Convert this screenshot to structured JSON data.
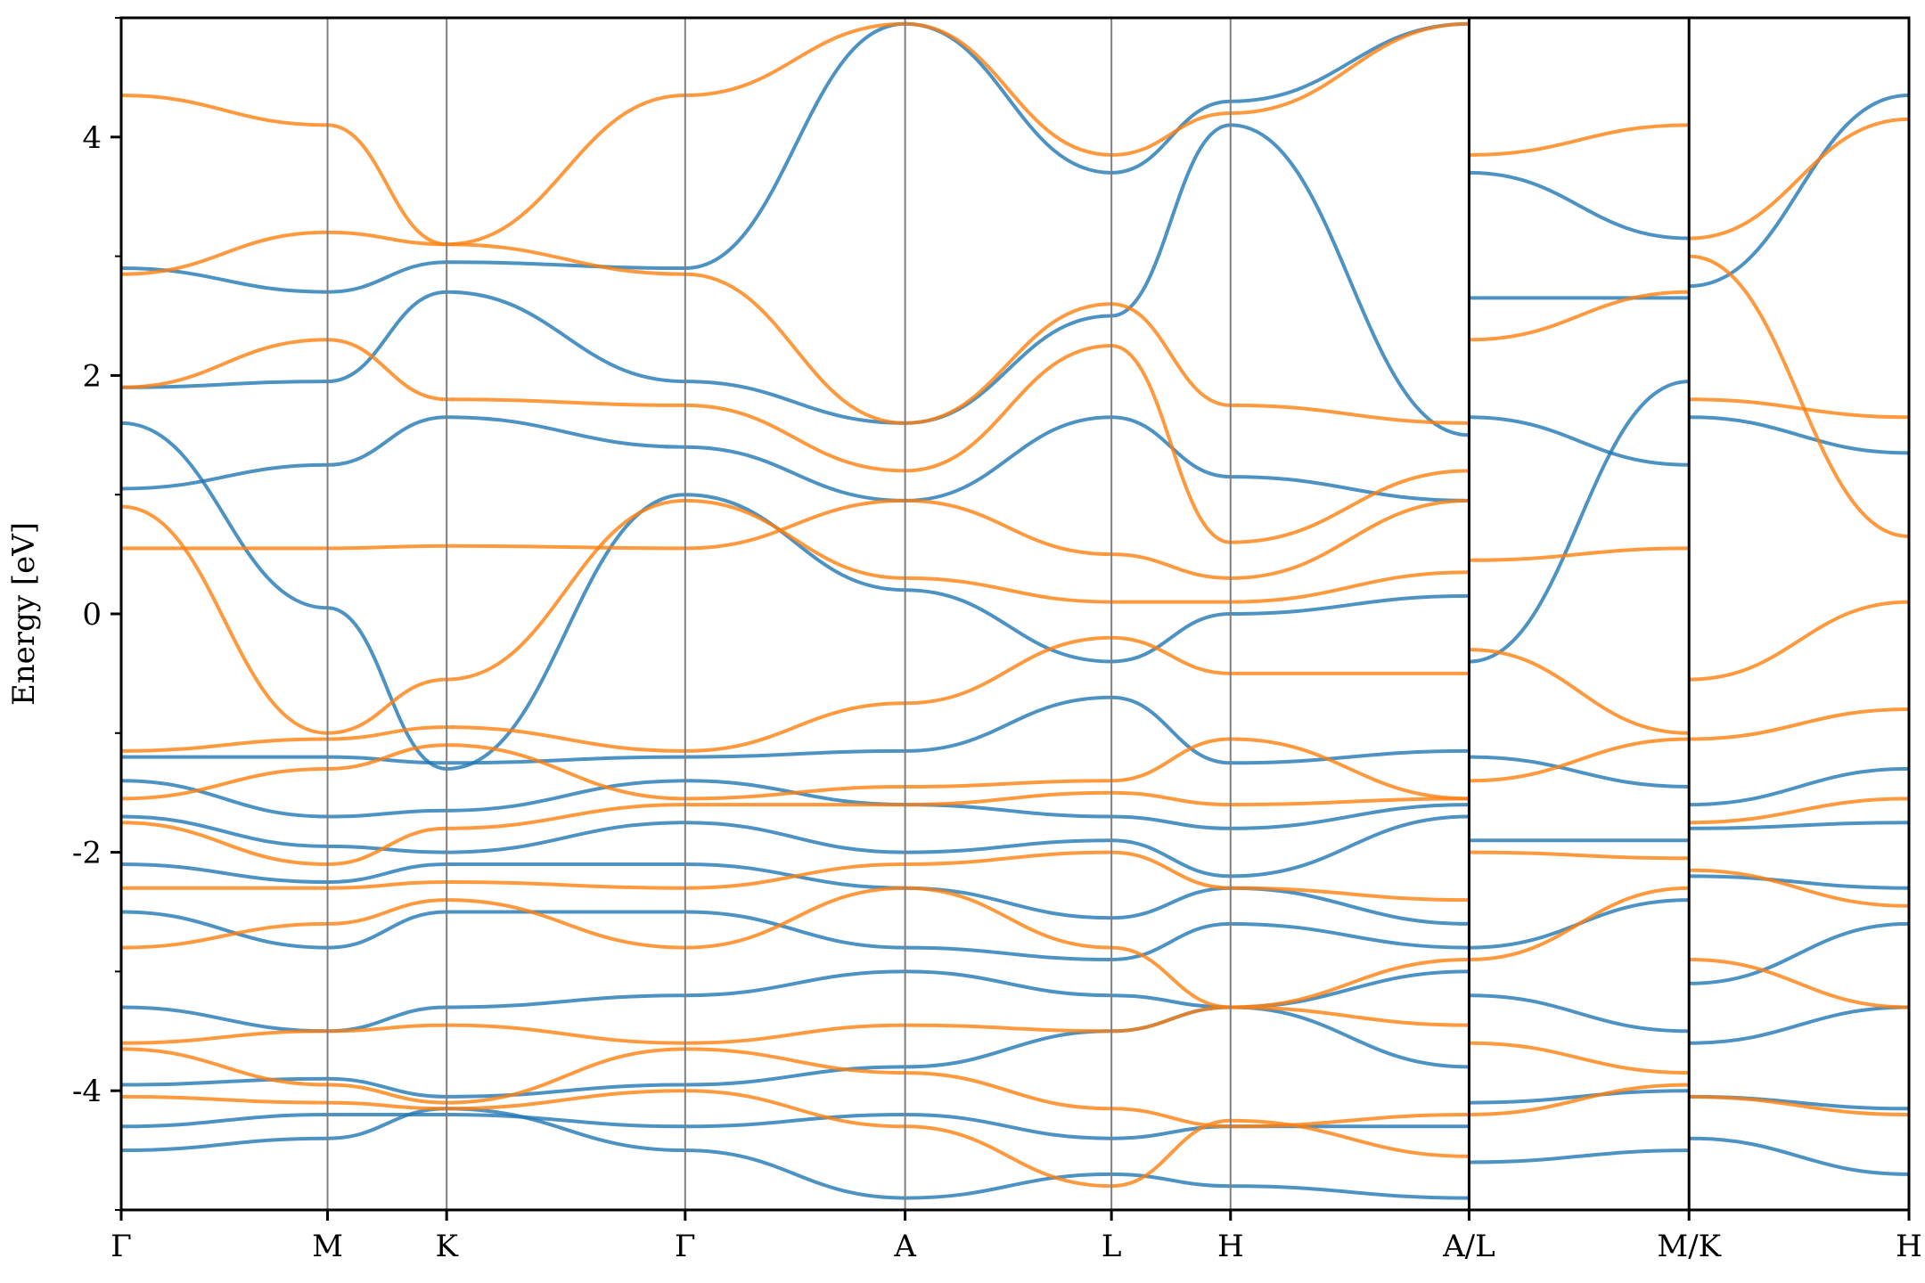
{
  "chart_data": {
    "type": "line",
    "title": "",
    "xlabel": "",
    "ylabel": "Energy [eV]",
    "ylim": [
      -5,
      5
    ],
    "grid": false,
    "legend": "none",
    "y_ticks": [
      -4,
      -2,
      0,
      2,
      4
    ],
    "y_minor_ticks": [
      -5,
      -3,
      -1,
      1,
      3,
      5
    ],
    "segments": [
      {
        "labels": [
          "Γ",
          "M",
          "K",
          "Γ",
          "A",
          "L",
          "H",
          "A"
        ],
        "k": [
          0,
          0.577,
          0.91,
          1.577,
          2.192,
          2.769,
          3.102,
          3.769
        ]
      },
      {
        "labels": [
          "L",
          "M"
        ],
        "k": [
          3.769,
          4.384
        ]
      },
      {
        "labels": [
          "K",
          "H"
        ],
        "k": [
          4.384,
          4.999
        ]
      }
    ],
    "k_tick_labels": [
      "Γ",
      "M",
      "K",
      "Γ",
      "A",
      "L",
      "H",
      "A/L",
      "M/K",
      "H"
    ],
    "k_tick_positions": [
      0,
      0.577,
      0.91,
      1.577,
      2.192,
      2.769,
      3.102,
      3.769,
      4.384,
      4.999
    ],
    "colors": {
      "series_a": "#1f77b4",
      "series_b": "#ff7f0e"
    },
    "series": [
      {
        "color": "#1f77b4",
        "bands": [
          {
            "k": [
              0,
              0.577,
              0.91,
              1.577,
              2.192,
              2.769,
              3.102,
              3.769
            ],
            "e": [
              2.9,
              2.7,
              2.95,
              2.9,
              4.95,
              3.7,
              4.3,
              4.95
            ]
          },
          {
            "k": [
              0,
              0.577,
              0.91,
              1.577,
              2.192,
              2.769,
              3.102,
              3.769
            ],
            "e": [
              1.9,
              1.95,
              2.7,
              1.95,
              1.6,
              2.5,
              4.1,
              1.5
            ]
          },
          {
            "k": [
              0,
              0.577,
              0.91,
              1.577,
              2.192,
              2.769,
              3.102,
              3.769
            ],
            "e": [
              1.05,
              1.25,
              1.65,
              1.4,
              0.95,
              1.65,
              1.15,
              0.95
            ]
          },
          {
            "k": [
              0,
              0.577,
              0.91,
              1.577,
              2.192,
              2.769,
              3.102,
              3.769
            ],
            "e": [
              1.6,
              0.05,
              -1.3,
              1.0,
              0.2,
              -0.4,
              0.0,
              0.15
            ]
          },
          {
            "k": [
              0,
              0.577,
              0.91,
              1.577,
              2.192,
              2.769,
              3.102,
              3.769
            ],
            "e": [
              -1.2,
              -1.2,
              -1.25,
              -1.2,
              -1.15,
              -0.7,
              -1.25,
              -1.15
            ]
          },
          {
            "k": [
              0,
              0.577,
              0.91,
              1.577,
              2.192,
              2.769,
              3.102,
              3.769
            ],
            "e": [
              -1.4,
              -1.7,
              -1.65,
              -1.4,
              -1.6,
              -1.7,
              -1.8,
              -1.6
            ]
          },
          {
            "k": [
              0,
              0.577,
              0.91,
              1.577,
              2.192,
              2.769,
              3.102,
              3.769
            ],
            "e": [
              -1.7,
              -1.95,
              -2.0,
              -1.75,
              -2.0,
              -1.9,
              -2.2,
              -1.7
            ]
          },
          {
            "k": [
              0,
              0.577,
              0.91,
              1.577,
              2.192,
              2.769,
              3.102,
              3.769
            ],
            "e": [
              -2.1,
              -2.25,
              -2.1,
              -2.1,
              -2.3,
              -2.55,
              -2.3,
              -2.6
            ]
          },
          {
            "k": [
              0,
              0.577,
              0.91,
              1.577,
              2.192,
              2.769,
              3.102,
              3.769
            ],
            "e": [
              -2.5,
              -2.8,
              -2.5,
              -2.5,
              -2.8,
              -2.9,
              -2.6,
              -2.8
            ]
          },
          {
            "k": [
              0,
              0.577,
              0.91,
              1.577,
              2.192,
              2.769,
              3.102,
              3.769
            ],
            "e": [
              -3.3,
              -3.5,
              -3.3,
              -3.2,
              -3.0,
              -3.2,
              -3.3,
              -3.0
            ]
          },
          {
            "k": [
              0,
              0.577,
              0.91,
              1.577,
              2.192,
              2.769,
              3.102,
              3.769
            ],
            "e": [
              -3.95,
              -3.9,
              -4.05,
              -3.95,
              -3.8,
              -3.5,
              -3.3,
              -3.8
            ]
          },
          {
            "k": [
              0,
              0.577,
              0.91,
              1.577,
              2.192,
              2.769,
              3.102,
              3.769
            ],
            "e": [
              -4.3,
              -4.2,
              -4.2,
              -4.3,
              -4.2,
              -4.4,
              -4.3,
              -4.3
            ]
          },
          {
            "k": [
              0,
              0.577,
              0.91,
              1.577,
              2.192,
              2.769,
              3.102,
              3.769
            ],
            "e": [
              -4.5,
              -4.4,
              -4.15,
              -4.5,
              -4.9,
              -4.7,
              -4.8,
              -4.9
            ]
          },
          {
            "k": [
              3.769,
              4.384
            ],
            "e": [
              3.7,
              3.15
            ]
          },
          {
            "k": [
              3.769,
              4.384
            ],
            "e": [
              2.65,
              2.65
            ]
          },
          {
            "k": [
              3.769,
              4.384
            ],
            "e": [
              1.65,
              1.25
            ]
          },
          {
            "k": [
              3.769,
              4.384
            ],
            "e": [
              -0.4,
              1.95
            ]
          },
          {
            "k": [
              3.769,
              4.384
            ],
            "e": [
              -1.2,
              -1.45
            ]
          },
          {
            "k": [
              3.769,
              4.384
            ],
            "e": [
              -1.9,
              -1.9
            ]
          },
          {
            "k": [
              3.769,
              4.384
            ],
            "e": [
              -2.8,
              -2.4
            ]
          },
          {
            "k": [
              3.769,
              4.384
            ],
            "e": [
              -3.2,
              -3.5
            ]
          },
          {
            "k": [
              3.769,
              4.384
            ],
            "e": [
              -4.1,
              -4.0
            ]
          },
          {
            "k": [
              3.769,
              4.384
            ],
            "e": [
              -4.6,
              -4.5
            ]
          },
          {
            "k": [
              4.384,
              4.999
            ],
            "e": [
              2.75,
              4.35
            ]
          },
          {
            "k": [
              4.384,
              4.999
            ],
            "e": [
              1.65,
              1.35
            ]
          },
          {
            "k": [
              4.384,
              4.999
            ],
            "e": [
              -1.6,
              -1.3
            ]
          },
          {
            "k": [
              4.384,
              4.999
            ],
            "e": [
              -1.8,
              -1.75
            ]
          },
          {
            "k": [
              4.384,
              4.999
            ],
            "e": [
              -2.2,
              -2.3
            ]
          },
          {
            "k": [
              4.384,
              4.999
            ],
            "e": [
              -3.1,
              -2.6
            ]
          },
          {
            "k": [
              4.384,
              4.999
            ],
            "e": [
              -3.6,
              -3.3
            ]
          },
          {
            "k": [
              4.384,
              4.999
            ],
            "e": [
              -4.05,
              -4.15
            ]
          },
          {
            "k": [
              4.384,
              4.999
            ],
            "e": [
              -4.4,
              -4.7
            ]
          }
        ]
      },
      {
        "color": "#ff7f0e",
        "bands": [
          {
            "k": [
              0,
              0.577,
              0.91,
              1.577,
              2.192,
              2.769,
              3.102,
              3.769
            ],
            "e": [
              4.35,
              4.1,
              3.1,
              4.35,
              4.95,
              3.85,
              4.2,
              4.95
            ]
          },
          {
            "k": [
              0,
              0.577,
              0.91,
              1.577,
              2.192,
              2.769,
              3.102,
              3.769
            ],
            "e": [
              2.85,
              3.2,
              3.1,
              2.85,
              1.6,
              2.6,
              1.75,
              1.6
            ]
          },
          {
            "k": [
              0,
              0.577,
              0.91,
              1.577,
              2.192,
              2.769,
              3.102,
              3.769
            ],
            "e": [
              1.9,
              2.3,
              1.8,
              1.75,
              1.2,
              2.25,
              0.6,
              1.2
            ]
          },
          {
            "k": [
              0,
              0.577,
              0.91,
              1.577,
              2.192,
              2.769,
              3.102,
              3.769
            ],
            "e": [
              0.55,
              0.55,
              0.57,
              0.55,
              0.95,
              0.5,
              0.3,
              0.95
            ]
          },
          {
            "k": [
              0,
              0.577,
              0.91,
              1.577,
              2.192,
              2.769,
              3.102,
              3.769
            ],
            "e": [
              0.9,
              -1.0,
              -0.55,
              0.95,
              0.3,
              0.1,
              0.1,
              0.35
            ]
          },
          {
            "k": [
              0,
              0.577,
              0.91,
              1.577,
              2.192,
              2.769,
              3.102,
              3.769
            ],
            "e": [
              -1.15,
              -1.05,
              -0.95,
              -1.15,
              -0.75,
              -0.2,
              -0.5,
              -0.5
            ]
          },
          {
            "k": [
              0,
              0.577,
              0.91,
              1.577,
              2.192,
              2.769,
              3.102,
              3.769
            ],
            "e": [
              -1.55,
              -1.3,
              -1.1,
              -1.55,
              -1.45,
              -1.4,
              -1.05,
              -1.55
            ]
          },
          {
            "k": [
              0,
              0.577,
              0.91,
              1.577,
              2.192,
              2.769,
              3.102,
              3.769
            ],
            "e": [
              -1.75,
              -2.1,
              -1.8,
              -1.6,
              -1.6,
              -1.5,
              -1.6,
              -1.55
            ]
          },
          {
            "k": [
              0,
              0.577,
              0.91,
              1.577,
              2.192,
              2.769,
              3.102,
              3.769
            ],
            "e": [
              -2.3,
              -2.3,
              -2.25,
              -2.3,
              -2.1,
              -2.0,
              -2.3,
              -2.4
            ]
          },
          {
            "k": [
              0,
              0.577,
              0.91,
              1.577,
              2.192,
              2.769,
              3.102,
              3.769
            ],
            "e": [
              -2.8,
              -2.6,
              -2.4,
              -2.8,
              -2.3,
              -2.8,
              -3.3,
              -2.9
            ]
          },
          {
            "k": [
              0,
              0.577,
              0.91,
              1.577,
              2.192,
              2.769,
              3.102,
              3.769
            ],
            "e": [
              -3.6,
              -3.5,
              -3.45,
              -3.6,
              -3.45,
              -3.5,
              -3.3,
              -3.45
            ]
          },
          {
            "k": [
              0,
              0.577,
              0.91,
              1.577,
              2.192,
              2.769,
              3.102,
              3.769
            ],
            "e": [
              -3.65,
              -3.95,
              -4.1,
              -3.65,
              -3.85,
              -4.15,
              -4.3,
              -4.2
            ]
          },
          {
            "k": [
              0,
              0.577,
              0.91,
              1.577,
              2.192,
              2.769,
              3.102,
              3.769
            ],
            "e": [
              -4.05,
              -4.1,
              -4.15,
              -4.0,
              -4.3,
              -4.8,
              -4.25,
              -4.55
            ]
          },
          {
            "k": [
              3.769,
              4.384
            ],
            "e": [
              3.85,
              4.1
            ]
          },
          {
            "k": [
              3.769,
              4.384
            ],
            "e": [
              2.3,
              2.7
            ]
          },
          {
            "k": [
              3.769,
              4.384
            ],
            "e": [
              0.45,
              0.55
            ]
          },
          {
            "k": [
              3.769,
              4.384
            ],
            "e": [
              -0.3,
              -1.0
            ]
          },
          {
            "k": [
              3.769,
              4.384
            ],
            "e": [
              -1.4,
              -1.05
            ]
          },
          {
            "k": [
              3.769,
              4.384
            ],
            "e": [
              -2.0,
              -2.05
            ]
          },
          {
            "k": [
              3.769,
              4.384
            ],
            "e": [
              -2.9,
              -2.3
            ]
          },
          {
            "k": [
              3.769,
              4.384
            ],
            "e": [
              -3.6,
              -3.85
            ]
          },
          {
            "k": [
              3.769,
              4.384
            ],
            "e": [
              -4.2,
              -3.95
            ]
          },
          {
            "k": [
              4.384,
              4.999
            ],
            "e": [
              3.15,
              4.15
            ]
          },
          {
            "k": [
              4.384,
              4.999
            ],
            "e": [
              3.0,
              0.65
            ]
          },
          {
            "k": [
              4.384,
              4.999
            ],
            "e": [
              1.8,
              1.65
            ]
          },
          {
            "k": [
              4.384,
              4.999
            ],
            "e": [
              -0.55,
              0.1
            ]
          },
          {
            "k": [
              4.384,
              4.999
            ],
            "e": [
              -1.05,
              -0.8
            ]
          },
          {
            "k": [
              4.384,
              4.999
            ],
            "e": [
              -1.75,
              -1.55
            ]
          },
          {
            "k": [
              4.384,
              4.999
            ],
            "e": [
              -2.15,
              -2.45
            ]
          },
          {
            "k": [
              4.384,
              4.999
            ],
            "e": [
              -2.9,
              -3.3
            ]
          },
          {
            "k": [
              4.384,
              4.999
            ],
            "e": [
              -4.05,
              -4.2
            ]
          }
        ]
      }
    ]
  }
}
